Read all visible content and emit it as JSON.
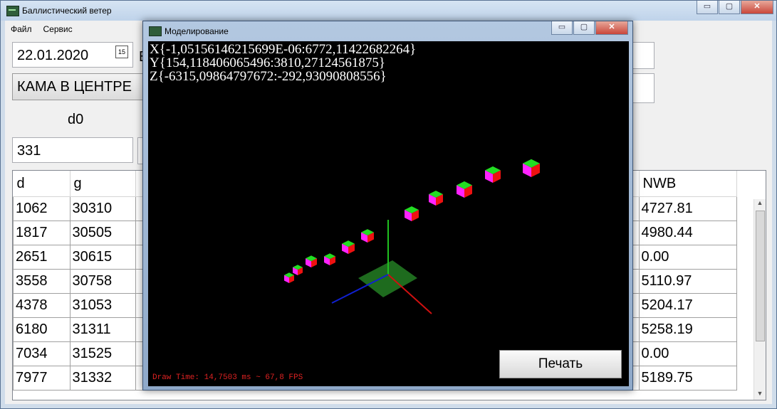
{
  "main": {
    "title": "Баллистический ветер",
    "menu": [
      "Файл",
      "Сервис"
    ],
    "date": "22.01.2020",
    "date_icon": "15",
    "mode_button": "КАМА В ЦЕНТРЕ",
    "clipped_label": "В",
    "d0_label": "d0",
    "d0_value": "331",
    "window_controls": {
      "minimize": "▭",
      "maximize": "▢",
      "close": "✕"
    }
  },
  "grid": {
    "headers": [
      "d",
      "g",
      "NWB"
    ],
    "rows": [
      {
        "d": "1062",
        "g": "30310",
        "nwb": "4727.81"
      },
      {
        "d": "1817",
        "g": "30505",
        "nwb": "4980.44"
      },
      {
        "d": "2651",
        "g": "30615",
        "nwb": "0.00"
      },
      {
        "d": "3558",
        "g": "30758",
        "nwb": "5110.97"
      },
      {
        "d": "4378",
        "g": "31053",
        "nwb": "5204.17"
      },
      {
        "d": "6180",
        "g": "31311",
        "nwb": "5258.19"
      },
      {
        "d": "7034",
        "g": "31525",
        "nwb": "0.00"
      },
      {
        "d": "7977",
        "g": "31332",
        "nwb": "5189.75"
      }
    ]
  },
  "modal": {
    "title": "Моделирование",
    "coords": [
      "X{-1,05156146215699E-06:6772,11422682264}",
      "Y{154,118406065496:3810,27124561875}",
      "Z{-6315,09864797672:-292,93090808556}"
    ],
    "draw_time": "Draw Time: 14,7503 ms ~ 67,8 FPS",
    "print_button": "Печать"
  },
  "colors": {
    "viewport_bg": "#000000",
    "axis_x": "#d01010",
    "axis_y": "#20c020",
    "axis_z": "#1020d0",
    "plane": "#1e6b1e"
  }
}
